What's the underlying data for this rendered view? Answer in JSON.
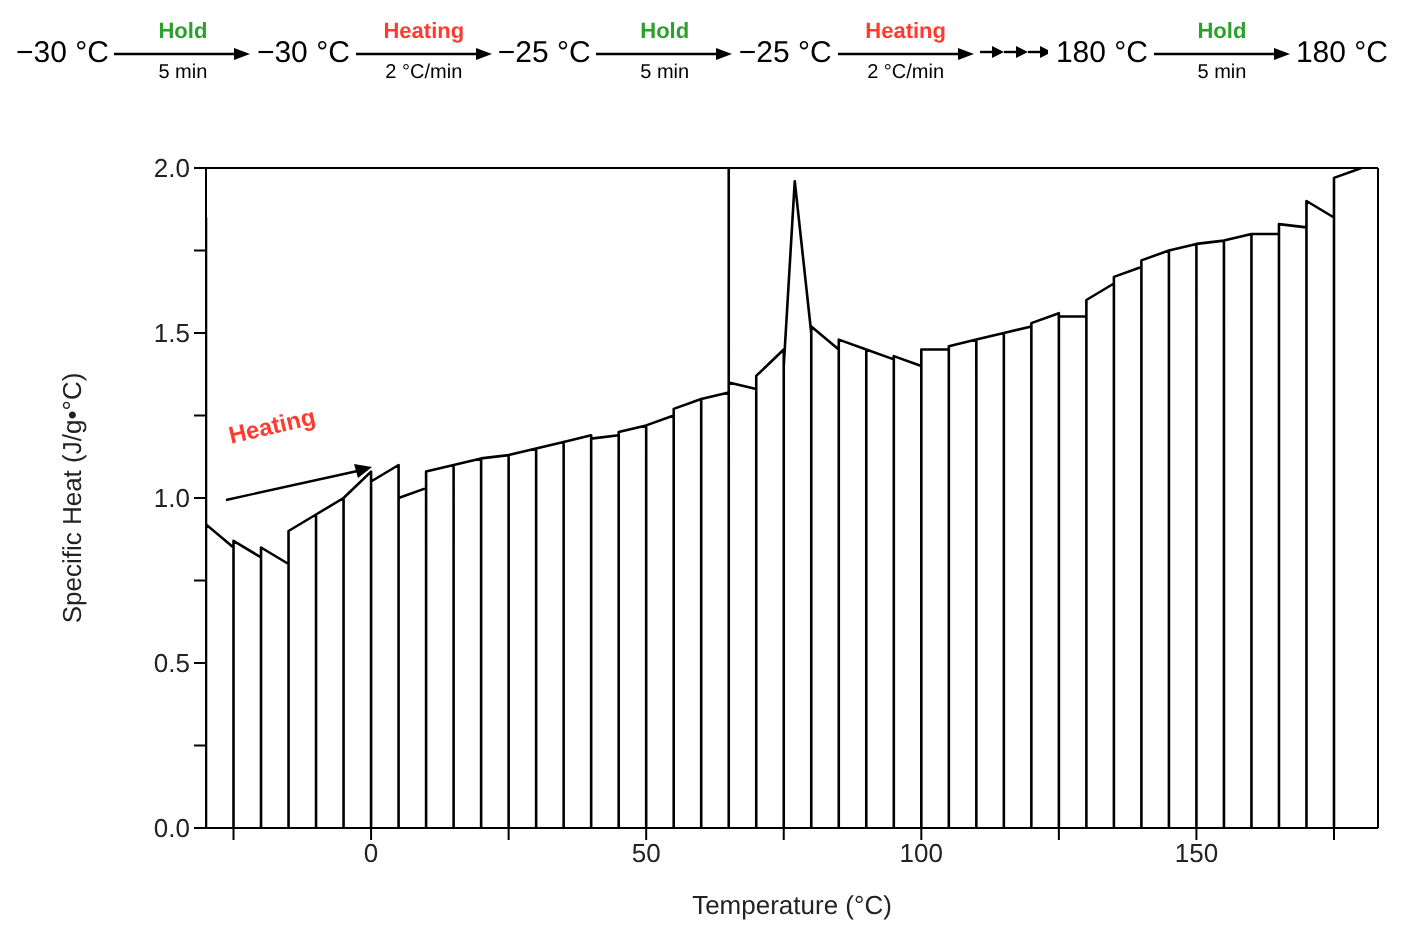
{
  "chart_data": {
    "type": "line",
    "xlabel": "Temperature (°C)",
    "ylabel": "Specific Heat (J/g•°C)",
    "annotations": [
      "−30 °C",
      "Hold",
      "5 min",
      "−30 °C",
      "Heating",
      "2 °C/min",
      "−25 °C",
      "Hold",
      "5 min",
      "−25 °C",
      "Heating",
      "2 °C/min",
      "180 °C",
      "Hold",
      "5 min",
      "180 °C",
      {
        "text": "Heating",
        "x": 0,
        "y": 1.1
      }
    ],
    "xlim": [
      -30,
      183
    ],
    "xticks": [
      0,
      50,
      100,
      150,
      {
        "value": -25,
        "label": null
      },
      {
        "value": 25,
        "label": null
      },
      {
        "value": 75,
        "label": null
      },
      {
        "value": 125,
        "label": null
      },
      {
        "value": 175,
        "label": null
      }
    ],
    "ylim": [
      0,
      2
    ],
    "yticks": [
      {
        "value": 0,
        "label": "0.0"
      },
      {
        "value": 0.5,
        "label": "0.5"
      },
      {
        "value": 1,
        "label": "1.0"
      },
      {
        "value": 1.5,
        "label": "1.5"
      },
      {
        "value": 2,
        "label": "2.0"
      },
      {
        "value": 0.25,
        "label": null
      },
      {
        "value": 0.75,
        "label": null
      },
      {
        "value": 1.25,
        "label": null
      },
      {
        "value": 1.75,
        "label": null
      }
    ],
    "series": [
      {
        "color": "#000000",
        "x": [
          -30,
          -30,
          -30,
          -25,
          -25,
          -25,
          -20,
          -20,
          -20,
          -15,
          -15,
          -15,
          -10,
          -10,
          -10,
          -5,
          -5,
          -5,
          0,
          0,
          0,
          5,
          5,
          5,
          10,
          10,
          10,
          15,
          15,
          15,
          20,
          20,
          20,
          25,
          25,
          25,
          30,
          30,
          30,
          35,
          35,
          35,
          40,
          40,
          40,
          45,
          45,
          45,
          50,
          50,
          50,
          55,
          55,
          55,
          60,
          60,
          60,
          65,
          65,
          65,
          65,
          70,
          70,
          70,
          75,
          75,
          75,
          77,
          80,
          80,
          80,
          85,
          85,
          85,
          90,
          90,
          90,
          95,
          95,
          95,
          100,
          100,
          100,
          105,
          105,
          105,
          110,
          110,
          110,
          115,
          115,
          115,
          120,
          120,
          120,
          125,
          125,
          125,
          130,
          130,
          130,
          135,
          135,
          135,
          140,
          140,
          140,
          145,
          145,
          145,
          150,
          150,
          150,
          155,
          155,
          155,
          160,
          160,
          160,
          165,
          165,
          165,
          170,
          170,
          170,
          175,
          175,
          175,
          180
        ],
        "values": [
          0,
          1.85,
          0.92,
          0.85,
          0,
          0.87,
          0.82,
          0,
          0.85,
          0.8,
          0,
          0.9,
          0.95,
          0,
          0.95,
          1.0,
          0,
          1.0,
          1.08,
          0,
          1.05,
          1.1,
          0,
          1.0,
          1.03,
          0,
          1.08,
          1.1,
          0,
          1.1,
          1.12,
          0,
          1.12,
          1.13,
          0,
          1.13,
          1.15,
          0,
          1.15,
          1.17,
          0,
          1.17,
          1.19,
          0,
          1.18,
          1.19,
          0,
          1.2,
          1.22,
          0,
          1.22,
          1.25,
          0,
          1.27,
          1.3,
          0,
          1.3,
          1.32,
          2.0,
          0,
          1.35,
          1.33,
          0,
          1.37,
          1.45,
          0,
          1.4,
          1.96,
          1.5,
          0,
          1.52,
          1.45,
          0,
          1.48,
          1.45,
          0,
          1.45,
          1.42,
          0,
          1.43,
          1.4,
          0,
          1.45,
          1.45,
          0,
          1.46,
          1.48,
          0,
          1.48,
          1.5,
          0,
          1.5,
          1.52,
          0,
          1.53,
          1.56,
          0,
          1.55,
          1.55,
          0,
          1.6,
          1.65,
          0,
          1.67,
          1.7,
          0,
          1.72,
          1.75,
          0,
          1.75,
          1.77,
          0,
          1.77,
          1.78,
          0,
          1.78,
          1.8,
          0,
          1.8,
          1.8,
          0,
          1.83,
          1.82,
          0,
          1.9,
          1.85,
          0,
          1.97,
          2.0
        ]
      }
    ]
  }
}
